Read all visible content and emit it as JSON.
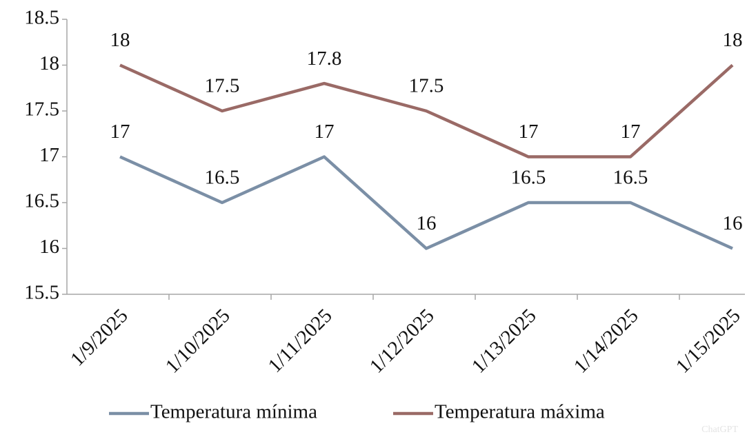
{
  "chart_data": {
    "type": "line",
    "categories": [
      "1/9/2025",
      "1/10/2025",
      "1/11/2025",
      "1/12/2025",
      "1/13/2025",
      "1/14/2025",
      "1/15/2025"
    ],
    "series": [
      {
        "name": "Temperatura mínima",
        "color": "#7b8fa6",
        "values": [
          17,
          16.5,
          17,
          16,
          16.5,
          16.5,
          16
        ]
      },
      {
        "name": "Temperatura máxima",
        "color": "#9a6a66",
        "values": [
          18,
          17.5,
          17.8,
          17.5,
          17,
          17,
          18
        ]
      }
    ],
    "ylim": [
      15.5,
      18.5
    ],
    "yticks": [
      15.5,
      16,
      16.5,
      17,
      17.5,
      18,
      18.5
    ],
    "legend": "bottom",
    "grid": false,
    "watermark": "ChatGPT"
  }
}
